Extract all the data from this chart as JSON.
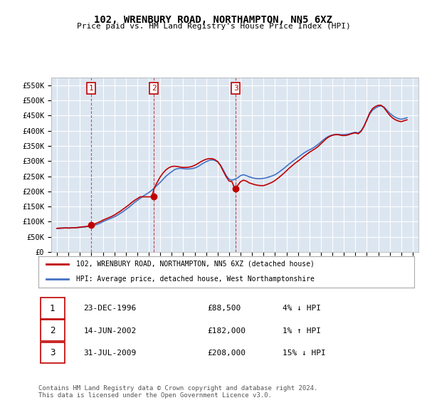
{
  "title": "102, WRENBURY ROAD, NORTHAMPTON, NN5 6XZ",
  "subtitle": "Price paid vs. HM Land Registry's House Price Index (HPI)",
  "ylabel": "",
  "ylim": [
    0,
    575000
  ],
  "yticks": [
    0,
    50000,
    100000,
    150000,
    200000,
    250000,
    300000,
    350000,
    400000,
    450000,
    500000,
    550000
  ],
  "ytick_labels": [
    "£0",
    "£50K",
    "£100K",
    "£150K",
    "£200K",
    "£250K",
    "£300K",
    "£350K",
    "£400K",
    "£450K",
    "£500K",
    "£550K"
  ],
  "background_color": "#ffffff",
  "plot_bg_color": "#dce6f1",
  "grid_color": "#ffffff",
  "hpi_color": "#4472c4",
  "price_color": "#c00000",
  "transaction_color": "#c00000",
  "sale_points": [
    {
      "date": 1996.97,
      "price": 88500,
      "label": "1"
    },
    {
      "date": 2002.45,
      "price": 182000,
      "label": "2"
    },
    {
      "date": 2009.58,
      "price": 208000,
      "label": "3"
    }
  ],
  "legend_line1": "102, WRENBURY ROAD, NORTHAMPTON, NN5 6XZ (detached house)",
  "legend_line2": "HPI: Average price, detached house, West Northamptonshire",
  "table_rows": [
    {
      "num": "1",
      "date": "23-DEC-1996",
      "price": "£88,500",
      "hpi": "4% ↓ HPI"
    },
    {
      "num": "2",
      "date": "14-JUN-2002",
      "price": "£182,000",
      "hpi": "1% ↑ HPI"
    },
    {
      "num": "3",
      "date": "31-JUL-2009",
      "price": "£208,000",
      "hpi": "15% ↓ HPI"
    }
  ],
  "footer": "Contains HM Land Registry data © Crown copyright and database right 2024.\nThis data is licensed under the Open Government Licence v3.0.",
  "hpi_data_x": [
    1994.0,
    1994.25,
    1994.5,
    1994.75,
    1995.0,
    1995.25,
    1995.5,
    1995.75,
    1996.0,
    1996.25,
    1996.5,
    1996.75,
    1997.0,
    1997.25,
    1997.5,
    1997.75,
    1998.0,
    1998.25,
    1998.5,
    1998.75,
    1999.0,
    1999.25,
    1999.5,
    1999.75,
    2000.0,
    2000.25,
    2000.5,
    2000.75,
    2001.0,
    2001.25,
    2001.5,
    2001.75,
    2002.0,
    2002.25,
    2002.5,
    2002.75,
    2003.0,
    2003.25,
    2003.5,
    2003.75,
    2004.0,
    2004.25,
    2004.5,
    2004.75,
    2005.0,
    2005.25,
    2005.5,
    2005.75,
    2006.0,
    2006.25,
    2006.5,
    2006.75,
    2007.0,
    2007.25,
    2007.5,
    2007.75,
    2008.0,
    2008.25,
    2008.5,
    2008.75,
    2009.0,
    2009.25,
    2009.5,
    2009.75,
    2010.0,
    2010.25,
    2010.5,
    2010.75,
    2011.0,
    2011.25,
    2011.5,
    2011.75,
    2012.0,
    2012.25,
    2012.5,
    2012.75,
    2013.0,
    2013.25,
    2013.5,
    2013.75,
    2014.0,
    2014.25,
    2014.5,
    2014.75,
    2015.0,
    2015.25,
    2015.5,
    2015.75,
    2016.0,
    2016.25,
    2016.5,
    2016.75,
    2017.0,
    2017.25,
    2017.5,
    2017.75,
    2018.0,
    2018.25,
    2018.5,
    2018.75,
    2019.0,
    2019.25,
    2019.5,
    2019.75,
    2020.0,
    2020.25,
    2020.5,
    2020.75,
    2021.0,
    2021.25,
    2021.5,
    2021.75,
    2022.0,
    2022.25,
    2022.5,
    2022.75,
    2023.0,
    2023.25,
    2023.5,
    2023.75,
    2024.0,
    2024.25,
    2024.5
  ],
  "hpi_data_y": [
    78000,
    78500,
    79000,
    79500,
    79000,
    79500,
    80000,
    80500,
    81000,
    82000,
    83000,
    84500,
    86000,
    88000,
    91000,
    95000,
    100000,
    104000,
    108000,
    112000,
    116000,
    121000,
    127000,
    133000,
    140000,
    147000,
    155000,
    163000,
    170000,
    177000,
    184000,
    190000,
    196000,
    203000,
    212000,
    221000,
    230000,
    240000,
    250000,
    258000,
    265000,
    272000,
    275000,
    276000,
    275000,
    274000,
    274000,
    275000,
    277000,
    281000,
    287000,
    293000,
    298000,
    302000,
    304000,
    302000,
    298000,
    287000,
    270000,
    252000,
    240000,
    237000,
    240000,
    245000,
    252000,
    255000,
    252000,
    248000,
    245000,
    243000,
    242000,
    242000,
    243000,
    245000,
    248000,
    251000,
    255000,
    261000,
    268000,
    275000,
    283000,
    291000,
    298000,
    305000,
    312000,
    319000,
    326000,
    332000,
    337000,
    342000,
    348000,
    355000,
    363000,
    371000,
    378000,
    383000,
    386000,
    388000,
    388000,
    387000,
    387000,
    388000,
    390000,
    393000,
    395000,
    393000,
    400000,
    415000,
    435000,
    455000,
    468000,
    475000,
    480000,
    482000,
    478000,
    468000,
    458000,
    450000,
    444000,
    440000,
    438000,
    440000,
    443000
  ],
  "price_data_x": [
    1994.0,
    1994.25,
    1994.5,
    1994.75,
    1995.0,
    1995.25,
    1995.5,
    1995.75,
    1996.0,
    1996.25,
    1996.5,
    1996.75,
    1997.0,
    1997.25,
    1997.5,
    1997.75,
    1998.0,
    1998.25,
    1998.5,
    1998.75,
    1999.0,
    1999.25,
    1999.5,
    1999.75,
    2000.0,
    2000.25,
    2000.5,
    2000.75,
    2001.0,
    2001.25,
    2001.5,
    2001.75,
    2002.0,
    2002.25,
    2002.5,
    2002.75,
    2003.0,
    2003.25,
    2003.5,
    2003.75,
    2004.0,
    2004.25,
    2004.5,
    2004.75,
    2005.0,
    2005.25,
    2005.5,
    2005.75,
    2006.0,
    2006.25,
    2006.5,
    2006.75,
    2007.0,
    2007.25,
    2007.5,
    2007.75,
    2008.0,
    2008.25,
    2008.5,
    2008.75,
    2009.0,
    2009.25,
    2009.5,
    2009.75,
    2010.0,
    2010.25,
    2010.5,
    2010.75,
    2011.0,
    2011.25,
    2011.5,
    2011.75,
    2012.0,
    2012.25,
    2012.5,
    2012.75,
    2013.0,
    2013.25,
    2013.5,
    2013.75,
    2014.0,
    2014.25,
    2014.5,
    2014.75,
    2015.0,
    2015.25,
    2015.5,
    2015.75,
    2016.0,
    2016.25,
    2016.5,
    2016.75,
    2017.0,
    2017.25,
    2017.5,
    2017.75,
    2018.0,
    2018.25,
    2018.5,
    2018.75,
    2019.0,
    2019.25,
    2019.5,
    2019.75,
    2020.0,
    2020.25,
    2020.5,
    2020.75,
    2021.0,
    2021.25,
    2021.5,
    2021.75,
    2022.0,
    2022.25,
    2022.5,
    2022.75,
    2023.0,
    2023.25,
    2023.5,
    2023.75,
    2024.0,
    2024.25,
    2024.5
  ],
  "price_data_y": [
    78000,
    78500,
    79000,
    79500,
    79000,
    79500,
    80000,
    80500,
    82000,
    83000,
    84000,
    85500,
    88500,
    92000,
    96000,
    100000,
    105000,
    109000,
    113000,
    117000,
    122000,
    128000,
    134000,
    141000,
    148000,
    155000,
    163000,
    170000,
    176000,
    182000,
    182000,
    182000,
    182000,
    182000,
    213000,
    231000,
    248000,
    261000,
    271000,
    278000,
    282000,
    283000,
    282000,
    280000,
    279000,
    279000,
    280000,
    282000,
    286000,
    291000,
    297000,
    302000,
    306000,
    308000,
    308000,
    305000,
    298000,
    285000,
    266000,
    248000,
    234000,
    232000,
    208000,
    220000,
    232000,
    237000,
    234000,
    228000,
    225000,
    222000,
    220000,
    219000,
    219000,
    222000,
    226000,
    230000,
    236000,
    243000,
    251000,
    259000,
    268000,
    277000,
    285000,
    293000,
    300000,
    307000,
    315000,
    322000,
    329000,
    335000,
    341000,
    348000,
    357000,
    366000,
    375000,
    381000,
    385000,
    387000,
    387000,
    385000,
    384000,
    385000,
    388000,
    391000,
    393000,
    390000,
    398000,
    414000,
    436000,
    459000,
    473000,
    480000,
    484000,
    484000,
    476000,
    463000,
    451000,
    442000,
    436000,
    432000,
    430000,
    433000,
    436000
  ],
  "xlim": [
    1993.5,
    2025.5
  ],
  "xtick_years": [
    1994,
    1995,
    1996,
    1997,
    1998,
    1999,
    2000,
    2001,
    2002,
    2003,
    2004,
    2005,
    2006,
    2007,
    2008,
    2009,
    2010,
    2011,
    2012,
    2013,
    2014,
    2015,
    2016,
    2017,
    2018,
    2019,
    2020,
    2021,
    2022,
    2023,
    2024,
    2025
  ]
}
